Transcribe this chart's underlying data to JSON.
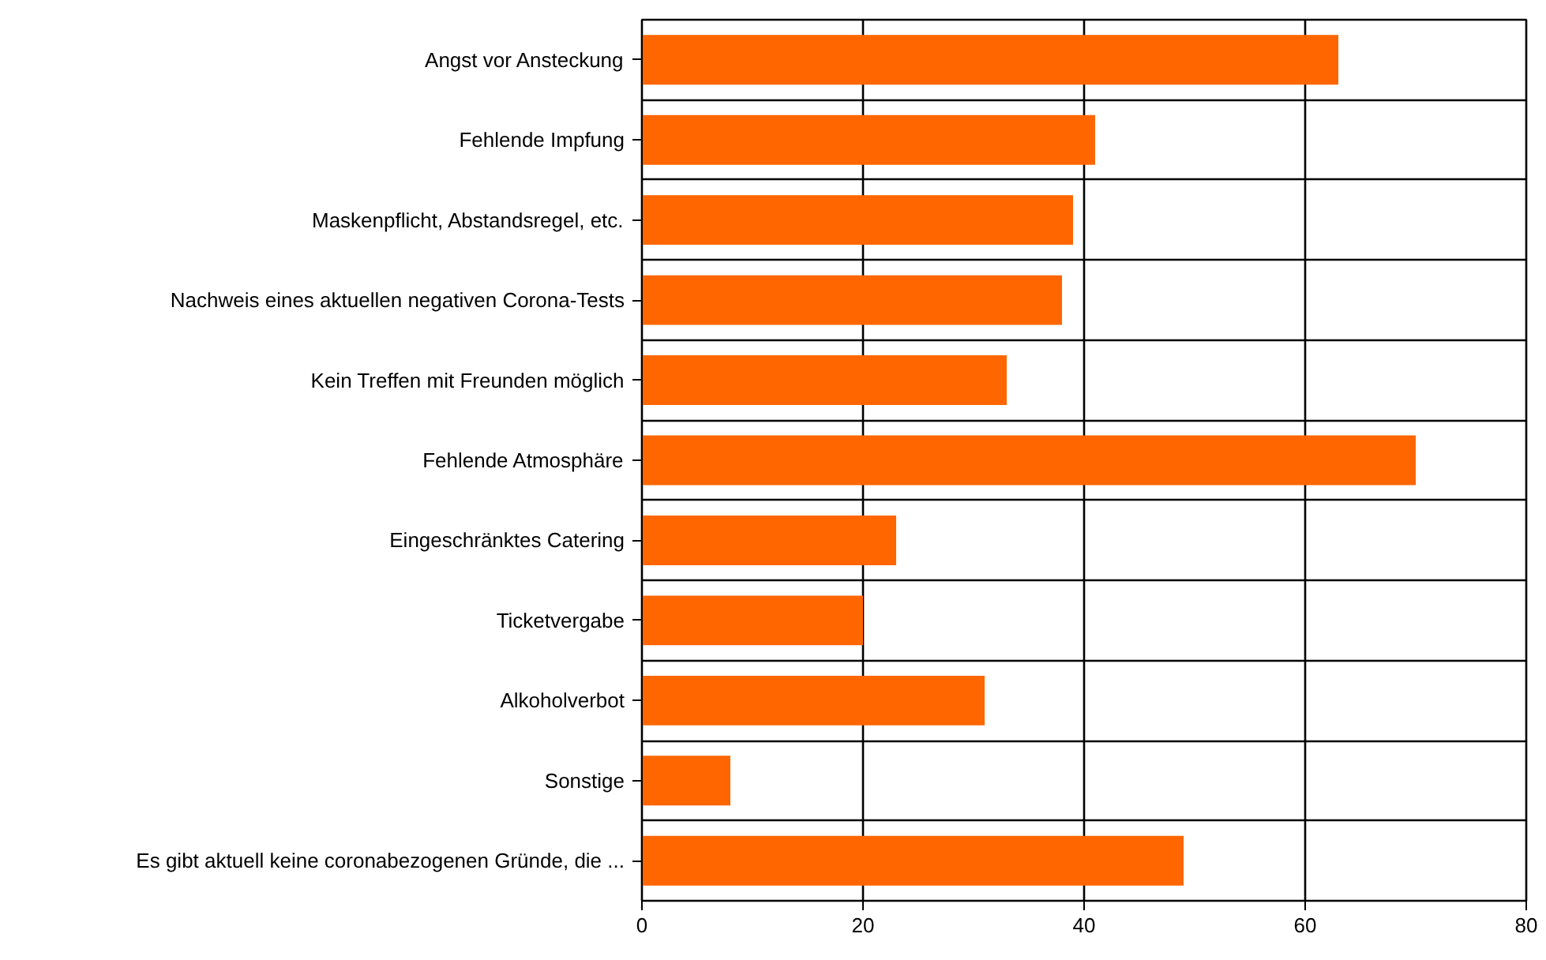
{
  "chart_data": {
    "type": "bar",
    "orientation": "horizontal",
    "categories": [
      "Angst vor Ansteckung",
      "Fehlende Impfung",
      "Maskenpflicht, Abstandsregel, etc.",
      "Nachweis eines aktuellen negativen Corona-Tests",
      "Kein Treffen mit Freunden möglich",
      "Fehlende Atmosphäre",
      "Eingeschränktes Catering",
      "Ticketvergabe",
      "Alkoholverbot",
      "Sonstige",
      "Es gibt aktuell keine coronabezogenen Gründe, die ..."
    ],
    "values": [
      63,
      41,
      39,
      38,
      33,
      70,
      23,
      20,
      31,
      8,
      49
    ],
    "color": "#ff6600",
    "xlim": [
      0,
      80
    ],
    "xticks": [
      0,
      20,
      40,
      60,
      80
    ],
    "grid": true
  }
}
